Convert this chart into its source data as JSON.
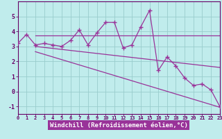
{
  "xlabel": "Windchill (Refroidissement éolien,°C)",
  "bg_color": "#c0ecec",
  "line_color": "#993399",
  "grid_color": "#99cccc",
  "x_data": [
    0,
    1,
    2,
    3,
    4,
    5,
    6,
    7,
    8,
    9,
    10,
    11,
    12,
    13,
    14,
    15,
    16,
    17,
    18,
    19,
    20,
    21,
    22,
    23
  ],
  "y_data": [
    3.2,
    3.8,
    3.1,
    3.2,
    3.1,
    3.0,
    3.4,
    4.1,
    3.1,
    3.9,
    4.6,
    4.6,
    2.9,
    3.1,
    4.3,
    5.4,
    1.4,
    2.3,
    1.7,
    0.9,
    0.4,
    0.5,
    0.1,
    -1.0
  ],
  "trend1_x": [
    2,
    23
  ],
  "trend1_y": [
    3.75,
    3.75
  ],
  "trend2_x": [
    2,
    23
  ],
  "trend2_y": [
    3.0,
    1.6
  ],
  "trend3_x": [
    2,
    23
  ],
  "trend3_y": [
    2.65,
    -1.05
  ],
  "xlim": [
    0,
    23
  ],
  "ylim": [
    -1.5,
    6.0
  ],
  "yticks": [
    -1,
    0,
    1,
    2,
    3,
    4,
    5
  ],
  "xticks": [
    0,
    1,
    2,
    3,
    4,
    5,
    6,
    7,
    8,
    9,
    10,
    11,
    12,
    13,
    14,
    15,
    16,
    17,
    18,
    19,
    20,
    21,
    22,
    23
  ],
  "spine_color": "#660066",
  "label_bg": "#993399",
  "label_fg": "#ffffff"
}
